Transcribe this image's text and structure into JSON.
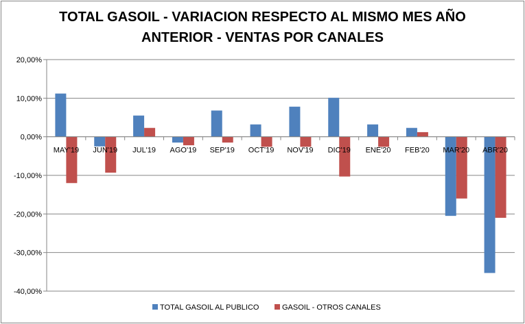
{
  "chart_data": {
    "type": "bar",
    "title_line1": "TOTAL GASOIL - VARIACION RESPECTO AL MISMO MES AÑO",
    "title_line2": "ANTERIOR - VENTAS POR CANALES",
    "categories": [
      "MAY'19",
      "JUN'19",
      "JUL'19",
      "AGO'19",
      "SEP'19",
      "OCT'19",
      "NOV'19",
      "DIC'19",
      "ENE'20",
      "FEB'20",
      "MAR'20",
      "ABR'20"
    ],
    "series": [
      {
        "name": "TOTAL GASOIL AL PUBLICO",
        "color": "#4F81BD",
        "values": [
          11.2,
          -2.5,
          5.5,
          -1.5,
          6.8,
          3.2,
          7.8,
          10.1,
          3.2,
          2.3,
          -20.5,
          -35.3
        ]
      },
      {
        "name": "GASOIL - OTROS CANALES",
        "color": "#C0504D",
        "values": [
          -12.0,
          -9.3,
          2.3,
          -2.2,
          -1.5,
          -2.6,
          -2.6,
          -10.3,
          -2.6,
          1.2,
          -16.0,
          -21.0
        ]
      }
    ],
    "y_ticks": [
      "20,00%",
      "10,00%",
      "0,00%",
      "-10,00%",
      "-20,00%",
      "-30,00%",
      "-40,00%"
    ],
    "ylim": [
      -40,
      20
    ],
    "grid": true,
    "legend_position": "bottom"
  }
}
